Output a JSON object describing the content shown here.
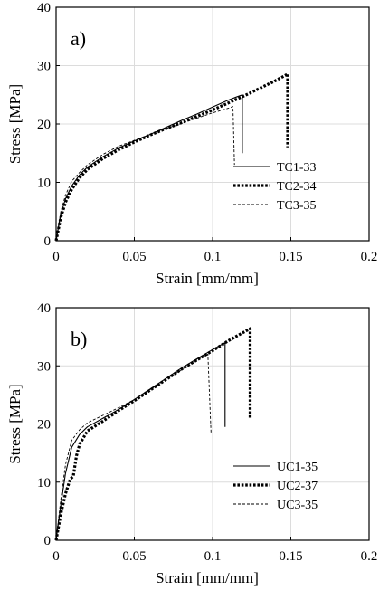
{
  "chart_data": [
    {
      "type": "line",
      "panel_label": "a)",
      "xlabel": "Strain [mm/mm]",
      "ylabel": "Stress [MPa]",
      "xlim": [
        0,
        0.2
      ],
      "ylim": [
        0,
        40
      ],
      "xticks": [
        0,
        0.05,
        0.1,
        0.15,
        0.2
      ],
      "xtick_labels": [
        "0",
        "0.05",
        "0.1",
        "0.15",
        "0.2"
      ],
      "yticks": [
        0,
        10,
        20,
        30,
        40
      ],
      "ytick_labels": [
        "0",
        "10",
        "20",
        "30",
        "40"
      ],
      "grid": true,
      "legend_position": "lower-right",
      "series": [
        {
          "name": "TC1-33",
          "style": "solid",
          "x": [
            0,
            0.003,
            0.006,
            0.01,
            0.015,
            0.02,
            0.03,
            0.04,
            0.05,
            0.06,
            0.07,
            0.08,
            0.09,
            0.1,
            0.11,
            0.115,
            0.119,
            0.119
          ],
          "y": [
            0,
            4.5,
            7.2,
            9.4,
            11.3,
            12.6,
            14.4,
            15.9,
            17.1,
            18.2,
            19.4,
            20.6,
            21.7,
            22.9,
            24.1,
            24.6,
            25.0,
            15.0
          ]
        },
        {
          "name": "TC2-34",
          "style": "dotted-thick",
          "x": [
            0,
            0.003,
            0.006,
            0.01,
            0.015,
            0.02,
            0.03,
            0.04,
            0.05,
            0.06,
            0.07,
            0.08,
            0.09,
            0.1,
            0.11,
            0.12,
            0.13,
            0.14,
            0.147,
            0.148,
            0.148
          ],
          "y": [
            0,
            4.0,
            6.6,
            8.8,
            10.8,
            12.2,
            14.1,
            15.6,
            16.9,
            18.1,
            19.2,
            20.2,
            21.3,
            22.4,
            23.6,
            24.8,
            26.1,
            27.4,
            28.4,
            28.6,
            16.0
          ]
        },
        {
          "name": "TC3-35",
          "style": "dashed",
          "x": [
            0,
            0.003,
            0.006,
            0.01,
            0.015,
            0.02,
            0.03,
            0.04,
            0.05,
            0.06,
            0.07,
            0.08,
            0.09,
            0.1,
            0.105,
            0.11,
            0.113,
            0.114
          ],
          "y": [
            0,
            5.0,
            7.8,
            10.2,
            11.7,
            13.0,
            14.8,
            16.2,
            17.2,
            18.2,
            19.2,
            20.1,
            21.0,
            21.9,
            22.3,
            22.7,
            23.0,
            13.0
          ]
        }
      ]
    },
    {
      "type": "line",
      "panel_label": "b)",
      "xlabel": "Strain [mm/mm]",
      "ylabel": "Stress [MPa]",
      "xlim": [
        0,
        0.2
      ],
      "ylim": [
        0,
        40
      ],
      "xticks": [
        0,
        0.05,
        0.1,
        0.15,
        0.2
      ],
      "xtick_labels": [
        "0",
        "0.05",
        "0.1",
        "0.15",
        "0.2"
      ],
      "yticks": [
        0,
        10,
        20,
        30,
        40
      ],
      "ytick_labels": [
        "0",
        "10",
        "20",
        "30",
        "40"
      ],
      "grid": true,
      "legend_position": "lower-right",
      "series": [
        {
          "name": "UC1-35",
          "style": "solid",
          "x": [
            0,
            0.003,
            0.006,
            0.01,
            0.015,
            0.02,
            0.03,
            0.04,
            0.05,
            0.06,
            0.07,
            0.08,
            0.09,
            0.1,
            0.108,
            0.108
          ],
          "y": [
            0,
            6.0,
            11.5,
            16.0,
            18.2,
            19.5,
            21.0,
            22.5,
            24.2,
            26.0,
            27.8,
            29.6,
            31.2,
            32.8,
            34.0,
            19.5
          ]
        },
        {
          "name": "UC2-37",
          "style": "dotted-thick",
          "x": [
            0,
            0.003,
            0.006,
            0.009,
            0.011,
            0.013,
            0.015,
            0.02,
            0.03,
            0.04,
            0.05,
            0.06,
            0.07,
            0.08,
            0.09,
            0.1,
            0.11,
            0.12,
            0.124,
            0.124
          ],
          "y": [
            0,
            4.5,
            8.0,
            10.5,
            11.0,
            14.5,
            16.5,
            18.8,
            20.5,
            22.3,
            24.0,
            25.8,
            27.6,
            29.4,
            31.0,
            32.6,
            34.3,
            35.8,
            36.4,
            21.0
          ]
        },
        {
          "name": "UC3-35",
          "style": "dashed",
          "x": [
            0,
            0.003,
            0.006,
            0.01,
            0.015,
            0.02,
            0.03,
            0.04,
            0.05,
            0.06,
            0.07,
            0.08,
            0.09,
            0.097,
            0.099
          ],
          "y": [
            0,
            7.0,
            13.0,
            17.2,
            19.0,
            20.2,
            21.5,
            22.8,
            24.2,
            25.9,
            27.6,
            29.3,
            31.0,
            32.0,
            18.5
          ]
        }
      ]
    }
  ]
}
